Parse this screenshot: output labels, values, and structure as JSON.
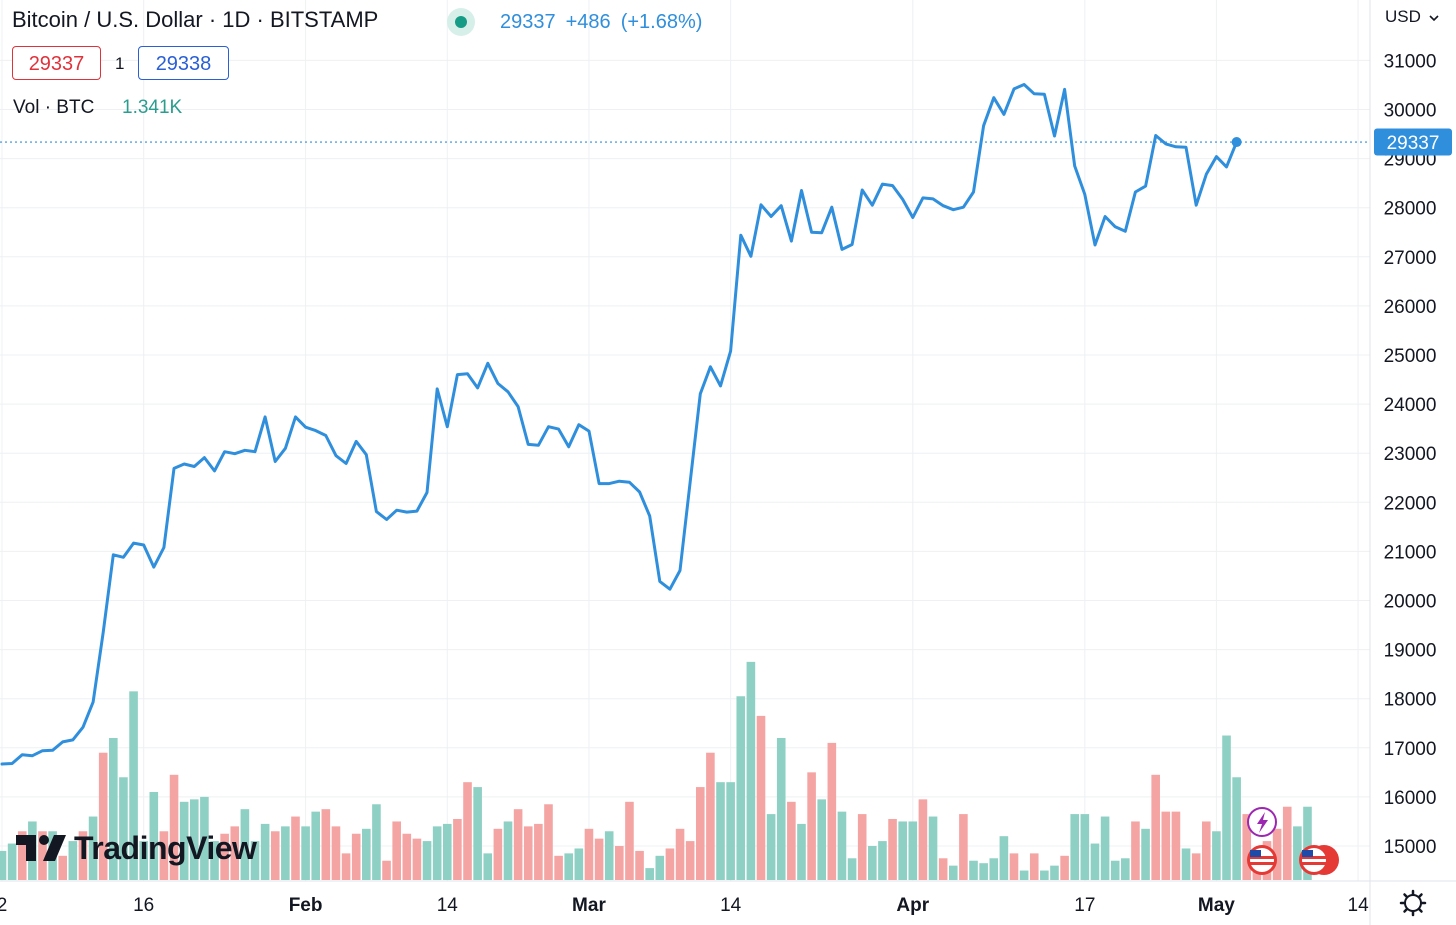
{
  "header": {
    "symbol_title": "Bitcoin / U.S. Dollar · 1D · BITSTAMP",
    "last_price": "29337",
    "change": "+486",
    "change_pct": "(+1.68%)",
    "bid": "29337",
    "spread": "1",
    "ask": "29338",
    "volume_label": "Vol · BTC",
    "volume_value": "1.341K",
    "currency": "USD",
    "brand": "TradingView"
  },
  "colors": {
    "line": "#2f8fdc",
    "volume_up": "#8fd0c5",
    "volume_down": "#f4a5a3",
    "bid": "#e0323b",
    "ask": "#2a5fd6"
  },
  "chart_data": {
    "type": "line",
    "title": "Bitcoin / U.S. Dollar · 1D · BITSTAMP",
    "xlabel": "",
    "ylabel": "",
    "y_ticks": [
      15000,
      16000,
      17000,
      18000,
      19000,
      20000,
      21000,
      22000,
      23000,
      24000,
      25000,
      26000,
      27000,
      28000,
      29000,
      30000,
      31000
    ],
    "ylim": [
      14250,
      31900
    ],
    "x_tick_labels": [
      "2",
      "16",
      "Feb",
      "14",
      "Mar",
      "14",
      "Apr",
      "17",
      "May",
      "14"
    ],
    "x_tick_index": [
      0,
      14,
      30,
      44,
      58,
      72,
      90,
      107,
      120,
      134
    ],
    "current_price_label": "29337",
    "grid": true,
    "legend": "none",
    "series": [
      {
        "values": [
          16670,
          16680,
          16860,
          16840,
          16940,
          16950,
          17120,
          17160,
          17420,
          17930,
          19350,
          20930,
          20880,
          21170,
          21130,
          20680,
          21080,
          22690,
          22780,
          22730,
          22910,
          22640,
          23030,
          22990,
          23060,
          23030,
          23740,
          22830,
          23100,
          23740,
          23530,
          23460,
          23360,
          22950,
          22790,
          23240,
          22970,
          21810,
          21650,
          21840,
          21800,
          21820,
          22200,
          24310,
          23540,
          24600,
          24620,
          24330,
          24830,
          24420,
          24250,
          23950,
          23180,
          23160,
          23540,
          23490,
          23130,
          23580,
          23450,
          22380,
          22380,
          22430,
          22410,
          22210,
          21720,
          20390,
          20230,
          20610,
          22420,
          24210,
          24760,
          24370,
          25080,
          27440,
          27010,
          28060,
          27820,
          28040,
          27320,
          28350,
          27500,
          27490,
          28010,
          27150,
          27250,
          28360,
          28050,
          28480,
          28450,
          28170,
          27800,
          28200,
          28180,
          28040,
          27960,
          28010,
          28320,
          29670,
          30240,
          29900,
          30420,
          30510,
          30320,
          30310,
          29460,
          30410,
          28850,
          28270,
          27240,
          27820,
          27610,
          27520,
          28320,
          28440,
          29470,
          29300,
          29240,
          29230,
          28050,
          28680,
          29040,
          28830,
          29337
        ],
        "volumes": [
          {
            "v": 14.9,
            "d": 0
          },
          {
            "v": 15.05,
            "d": 0
          },
          {
            "v": 15.3,
            "d": 1
          },
          {
            "v": 15.5,
            "d": 0
          },
          {
            "v": 15.3,
            "d": 1
          },
          {
            "v": 15.3,
            "d": 0
          },
          {
            "v": 14.8,
            "d": 1
          },
          {
            "v": 15.1,
            "d": 0
          },
          {
            "v": 15.3,
            "d": 1
          },
          {
            "v": 15.6,
            "d": 0
          },
          {
            "v": 16.9,
            "d": 1
          },
          {
            "v": 17.2,
            "d": 0
          },
          {
            "v": 16.4,
            "d": 0
          },
          {
            "v": 18.15,
            "d": 0
          },
          {
            "v": 15.1,
            "d": 0
          },
          {
            "v": 16.1,
            "d": 0
          },
          {
            "v": 15.3,
            "d": 1
          },
          {
            "v": 16.45,
            "d": 1
          },
          {
            "v": 15.9,
            "d": 0
          },
          {
            "v": 15.95,
            "d": 0
          },
          {
            "v": 16.0,
            "d": 0
          },
          {
            "v": 15.1,
            "d": 0
          },
          {
            "v": 15.25,
            "d": 1
          },
          {
            "v": 15.4,
            "d": 1
          },
          {
            "v": 15.75,
            "d": 0
          },
          {
            "v": 15.1,
            "d": 0
          },
          {
            "v": 15.45,
            "d": 0
          },
          {
            "v": 15.3,
            "d": 1
          },
          {
            "v": 15.4,
            "d": 0
          },
          {
            "v": 15.6,
            "d": 1
          },
          {
            "v": 15.4,
            "d": 0
          },
          {
            "v": 15.7,
            "d": 0
          },
          {
            "v": 15.75,
            "d": 1
          },
          {
            "v": 15.4,
            "d": 1
          },
          {
            "v": 14.85,
            "d": 1
          },
          {
            "v": 15.25,
            "d": 1
          },
          {
            "v": 15.35,
            "d": 0
          },
          {
            "v": 15.85,
            "d": 0
          },
          {
            "v": 14.7,
            "d": 1
          },
          {
            "v": 15.5,
            "d": 1
          },
          {
            "v": 15.25,
            "d": 1
          },
          {
            "v": 15.15,
            "d": 1
          },
          {
            "v": 15.1,
            "d": 0
          },
          {
            "v": 15.4,
            "d": 0
          },
          {
            "v": 15.45,
            "d": 0
          },
          {
            "v": 15.55,
            "d": 1
          },
          {
            "v": 16.3,
            "d": 1
          },
          {
            "v": 16.2,
            "d": 0
          },
          {
            "v": 14.85,
            "d": 0
          },
          {
            "v": 15.35,
            "d": 1
          },
          {
            "v": 15.5,
            "d": 0
          },
          {
            "v": 15.75,
            "d": 1
          },
          {
            "v": 15.4,
            "d": 1
          },
          {
            "v": 15.45,
            "d": 1
          },
          {
            "v": 15.85,
            "d": 1
          },
          {
            "v": 14.8,
            "d": 1
          },
          {
            "v": 14.85,
            "d": 0
          },
          {
            "v": 14.95,
            "d": 0
          },
          {
            "v": 15.35,
            "d": 1
          },
          {
            "v": 15.15,
            "d": 1
          },
          {
            "v": 15.3,
            "d": 0
          },
          {
            "v": 15.0,
            "d": 1
          },
          {
            "v": 15.9,
            "d": 1
          },
          {
            "v": 14.9,
            "d": 1
          },
          {
            "v": 14.55,
            "d": 0
          },
          {
            "v": 14.8,
            "d": 0
          },
          {
            "v": 14.95,
            "d": 1
          },
          {
            "v": 15.35,
            "d": 1
          },
          {
            "v": 15.1,
            "d": 1
          },
          {
            "v": 16.2,
            "d": 1
          },
          {
            "v": 16.9,
            "d": 1
          },
          {
            "v": 16.3,
            "d": 0
          },
          {
            "v": 16.3,
            "d": 0
          },
          {
            "v": 18.05,
            "d": 0
          },
          {
            "v": 18.75,
            "d": 0
          },
          {
            "v": 17.65,
            "d": 1
          },
          {
            "v": 15.65,
            "d": 0
          },
          {
            "v": 17.2,
            "d": 0
          },
          {
            "v": 15.9,
            "d": 1
          },
          {
            "v": 15.45,
            "d": 0
          },
          {
            "v": 16.5,
            "d": 1
          },
          {
            "v": 15.95,
            "d": 0
          },
          {
            "v": 17.1,
            "d": 1
          },
          {
            "v": 15.7,
            "d": 0
          },
          {
            "v": 14.75,
            "d": 0
          },
          {
            "v": 15.65,
            "d": 1
          },
          {
            "v": 15.0,
            "d": 0
          },
          {
            "v": 15.1,
            "d": 0
          },
          {
            "v": 15.55,
            "d": 1
          },
          {
            "v": 15.5,
            "d": 0
          },
          {
            "v": 15.5,
            "d": 0
          },
          {
            "v": 15.95,
            "d": 1
          },
          {
            "v": 15.6,
            "d": 0
          },
          {
            "v": 14.75,
            "d": 1
          },
          {
            "v": 14.6,
            "d": 0
          },
          {
            "v": 15.65,
            "d": 1
          },
          {
            "v": 14.7,
            "d": 0
          },
          {
            "v": 14.65,
            "d": 0
          },
          {
            "v": 14.75,
            "d": 0
          },
          {
            "v": 15.2,
            "d": 0
          },
          {
            "v": 14.85,
            "d": 1
          },
          {
            "v": 14.5,
            "d": 0
          },
          {
            "v": 14.85,
            "d": 1
          },
          {
            "v": 14.5,
            "d": 0
          },
          {
            "v": 14.6,
            "d": 0
          },
          {
            "v": 14.8,
            "d": 1
          },
          {
            "v": 15.65,
            "d": 0
          },
          {
            "v": 15.65,
            "d": 0
          },
          {
            "v": 15.05,
            "d": 0
          },
          {
            "v": 15.6,
            "d": 0
          },
          {
            "v": 14.7,
            "d": 0
          },
          {
            "v": 14.75,
            "d": 0
          },
          {
            "v": 15.5,
            "d": 1
          },
          {
            "v": 15.35,
            "d": 0
          },
          {
            "v": 16.45,
            "d": 1
          },
          {
            "v": 15.7,
            "d": 1
          },
          {
            "v": 15.7,
            "d": 1
          },
          {
            "v": 14.95,
            "d": 0
          },
          {
            "v": 14.85,
            "d": 1
          },
          {
            "v": 15.5,
            "d": 1
          },
          {
            "v": 15.3,
            "d": 0
          },
          {
            "v": 17.25,
            "d": 0
          },
          {
            "v": 16.4,
            "d": 0
          },
          {
            "v": 15.65,
            "d": 1
          },
          {
            "v": 14.8,
            "d": 1
          },
          {
            "v": 15.1,
            "d": 1
          },
          {
            "v": 15.35,
            "d": 1
          },
          {
            "v": 15.8,
            "d": 1
          },
          {
            "v": 15.4,
            "d": 0
          },
          {
            "v": 15.8,
            "d": 0
          }
        ]
      }
    ]
  }
}
